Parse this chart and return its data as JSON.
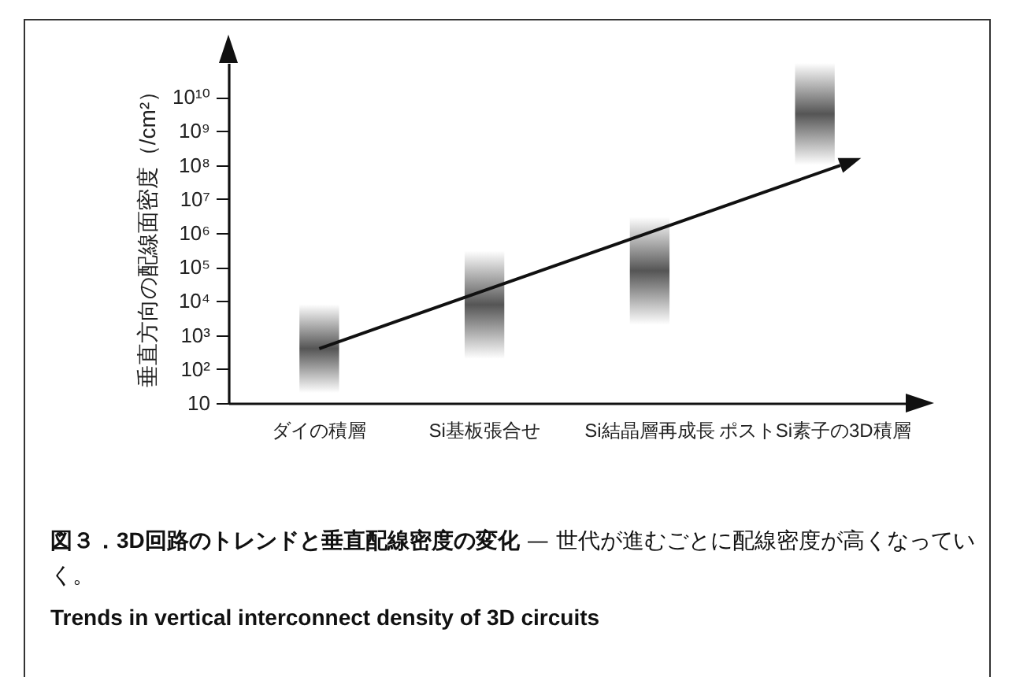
{
  "chart_data": {
    "type": "bar",
    "title": "図３．3D回路のトレンドと垂直配線密度の変化",
    "subtitle": "— 世代が進むごとに配線密度が高くなっていく。",
    "ylabel": "垂直方向の配線面密度（/cm²）",
    "categories": [
      "ダイの積層",
      "Si基板張合せ",
      "Si結晶層再成長",
      "ポストSi素子の3D積層"
    ],
    "base": [
      20,
      200,
      2000,
      100000000
    ],
    "values": [
      7980,
      299800,
      2998000,
      99900000000
    ],
    "color": "#555555",
    "log": true,
    "ylim": [
      10,
      100000000000
    ],
    "yticks": [
      10,
      {
        "value": 100,
        "label": "10²"
      },
      {
        "value": 1000,
        "label": "10³"
      },
      {
        "value": 10000,
        "label": "10⁴"
      },
      {
        "value": 100000,
        "label": "10⁵"
      },
      {
        "value": 1000000,
        "label": "10⁶"
      },
      {
        "value": 10000000,
        "label": "10⁷"
      },
      {
        "value": 100000000,
        "label": "10⁸"
      },
      {
        "value": 1000000000,
        "label": "10⁹"
      },
      {
        "value": 10000000000,
        "label": "10¹⁰"
      }
    ],
    "grid": false,
    "annotations": [
      "Trends in vertical interconnect density of 3D circuits"
    ]
  }
}
